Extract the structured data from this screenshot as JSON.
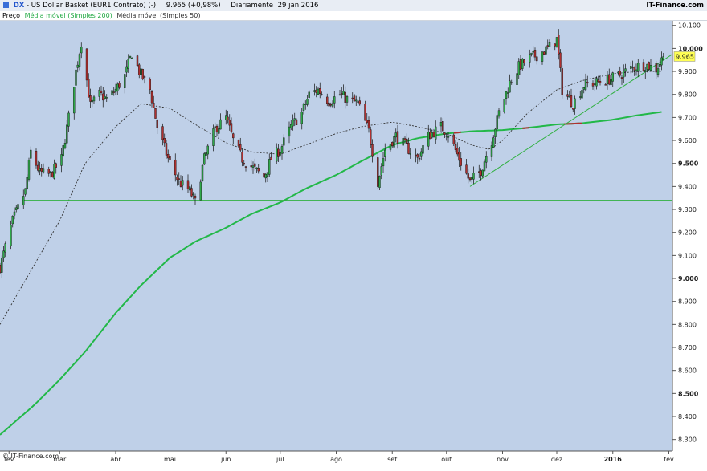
{
  "header": {
    "symbol": "DX",
    "title": "- US Dollar Basket (EUR1 Contrato) (-)",
    "quote": "9.965 (+0,98%)",
    "interval": "Diariamente",
    "date": "29 jan 2016",
    "brand": "IT-Finance.com"
  },
  "legend": {
    "items": [
      {
        "label": "Preço",
        "color": "#000000"
      },
      {
        "label": "Média móvel (Simples 200)",
        "color": "#22aa44"
      },
      {
        "label": "Média móvel (Simples 50)",
        "color": "#333333"
      }
    ]
  },
  "copyright": "© IT-Finance.com",
  "last_price_label": "9.965",
  "colors": {
    "background": "#bfd0e8",
    "up_candle": "#2fa84a",
    "down_candle": "#b03030",
    "ma200": "#22b848",
    "ma50": "#333333",
    "resistance": "#e05050",
    "support": "#30b040",
    "trendline": "#30b040",
    "price_tag": "#ffff55"
  },
  "chart_data": {
    "type": "candlestick",
    "y_axis": {
      "min": 8.25,
      "max": 10.12,
      "ticks": [
        "8.300",
        "8.400",
        "8.500",
        "8.600",
        "8.700",
        "8.800",
        "8.900",
        "9.000",
        "9.100",
        "9.200",
        "9.300",
        "9.400",
        "9.500",
        "9.600",
        "9.700",
        "9.800",
        "9.900",
        "10.000",
        "10.100"
      ],
      "bold_ticks": [
        "8.500",
        "9.000",
        "9.500",
        "10.000"
      ]
    },
    "x_axis": {
      "start": "2015-01-27",
      "end": "2016-02-03",
      "ticks": [
        {
          "label": "fev",
          "date": "2015-02-01"
        },
        {
          "label": "mar",
          "date": "2015-03-01"
        },
        {
          "label": "abr",
          "date": "2015-04-01"
        },
        {
          "label": "mai",
          "date": "2015-05-01"
        },
        {
          "label": "jun",
          "date": "2015-06-01"
        },
        {
          "label": "jul",
          "date": "2015-07-01"
        },
        {
          "label": "ago",
          "date": "2015-08-01"
        },
        {
          "label": "set",
          "date": "2015-09-01"
        },
        {
          "label": "out",
          "date": "2015-10-01"
        },
        {
          "label": "nov",
          "date": "2015-11-01"
        },
        {
          "label": "dez",
          "date": "2015-12-01"
        },
        {
          "label": "2016",
          "date": "2016-01-01",
          "bold": true
        },
        {
          "label": "fev",
          "date": "2016-02-01"
        }
      ]
    },
    "close_path": [
      [
        "2015-01-27",
        9.05
      ],
      [
        "2015-02-03",
        9.25
      ],
      [
        "2015-02-10",
        9.38
      ],
      [
        "2015-02-13",
        9.55
      ],
      [
        "2015-02-18",
        9.46
      ],
      [
        "2015-02-24",
        9.45
      ],
      [
        "2015-03-02",
        9.52
      ],
      [
        "2015-03-06",
        9.7
      ],
      [
        "2015-03-10",
        9.9
      ],
      [
        "2015-03-13",
        10.03
      ],
      [
        "2015-03-18",
        9.75
      ],
      [
        "2015-03-23",
        9.8
      ],
      [
        "2015-03-27",
        9.78
      ],
      [
        "2015-04-01",
        9.82
      ],
      [
        "2015-04-06",
        9.88
      ],
      [
        "2015-04-10",
        9.98
      ],
      [
        "2015-04-14",
        9.9
      ],
      [
        "2015-04-20",
        9.82
      ],
      [
        "2015-04-24",
        9.66
      ],
      [
        "2015-04-30",
        9.52
      ],
      [
        "2015-05-06",
        9.42
      ],
      [
        "2015-05-12",
        9.38
      ],
      [
        "2015-05-15",
        9.33
      ],
      [
        "2015-05-20",
        9.52
      ],
      [
        "2015-05-26",
        9.65
      ],
      [
        "2015-06-01",
        9.7
      ],
      [
        "2015-06-05",
        9.6
      ],
      [
        "2015-06-10",
        9.52
      ],
      [
        "2015-06-16",
        9.48
      ],
      [
        "2015-06-22",
        9.44
      ],
      [
        "2015-06-26",
        9.52
      ],
      [
        "2015-07-01",
        9.56
      ],
      [
        "2015-07-07",
        9.66
      ],
      [
        "2015-07-13",
        9.72
      ],
      [
        "2015-07-17",
        9.8
      ],
      [
        "2015-07-22",
        9.82
      ],
      [
        "2015-07-28",
        9.77
      ],
      [
        "2015-08-03",
        9.8
      ],
      [
        "2015-08-07",
        9.78
      ],
      [
        "2015-08-13",
        9.76
      ],
      [
        "2015-08-19",
        9.64
      ],
      [
        "2015-08-24",
        9.42
      ],
      [
        "2015-08-28",
        9.56
      ],
      [
        "2015-09-03",
        9.62
      ],
      [
        "2015-09-09",
        9.57
      ],
      [
        "2015-09-15",
        9.52
      ],
      [
        "2015-09-21",
        9.62
      ],
      [
        "2015-09-28",
        9.66
      ],
      [
        "2015-10-02",
        9.63
      ],
      [
        "2015-10-08",
        9.52
      ],
      [
        "2015-10-14",
        9.42
      ],
      [
        "2015-10-20",
        9.47
      ],
      [
        "2015-10-26",
        9.6
      ],
      [
        "2015-10-30",
        9.72
      ],
      [
        "2015-11-05",
        9.85
      ],
      [
        "2015-11-10",
        9.92
      ],
      [
        "2015-11-16",
        9.96
      ],
      [
        "2015-11-20",
        9.97
      ],
      [
        "2015-11-26",
        10.0
      ],
      [
        "2015-12-01",
        10.04
      ],
      [
        "2015-12-04",
        9.82
      ],
      [
        "2015-12-10",
        9.76
      ],
      [
        "2015-12-16",
        9.84
      ],
      [
        "2015-12-22",
        9.85
      ],
      [
        "2015-12-28",
        9.86
      ],
      [
        "2016-01-04",
        9.88
      ],
      [
        "2016-01-08",
        9.9
      ],
      [
        "2016-01-13",
        9.92
      ],
      [
        "2016-01-19",
        9.93
      ],
      [
        "2016-01-25",
        9.91
      ],
      [
        "2016-01-29",
        9.965
      ]
    ],
    "ma200": [
      [
        "2015-01-27",
        8.32
      ],
      [
        "2015-02-15",
        8.45
      ],
      [
        "2015-03-01",
        8.56
      ],
      [
        "2015-03-15",
        8.68
      ],
      [
        "2015-04-01",
        8.85
      ],
      [
        "2015-04-15",
        8.97
      ],
      [
        "2015-05-01",
        9.09
      ],
      [
        "2015-05-15",
        9.16
      ],
      [
        "2015-06-01",
        9.22
      ],
      [
        "2015-06-15",
        9.28
      ],
      [
        "2015-07-01",
        9.33
      ],
      [
        "2015-07-15",
        9.39
      ],
      [
        "2015-08-01",
        9.45
      ],
      [
        "2015-08-15",
        9.51
      ],
      [
        "2015-09-01",
        9.58
      ],
      [
        "2015-09-15",
        9.61
      ],
      [
        "2015-10-01",
        9.63
      ],
      [
        "2015-10-15",
        9.64
      ],
      [
        "2015-11-01",
        9.645
      ],
      [
        "2015-11-15",
        9.655
      ],
      [
        "2015-12-01",
        9.67
      ],
      [
        "2015-12-15",
        9.675
      ],
      [
        "2016-01-01",
        9.69
      ],
      [
        "2016-01-15",
        9.71
      ],
      [
        "2016-01-29",
        9.725
      ]
    ],
    "ma200_red_segments": [
      [
        "2015-10-05",
        "2015-10-09"
      ],
      [
        "2015-11-12",
        "2015-11-16"
      ],
      [
        "2015-12-05",
        "2015-12-15"
      ]
    ],
    "ma50": [
      [
        "2015-01-27",
        8.8
      ],
      [
        "2015-02-15",
        9.06
      ],
      [
        "2015-03-01",
        9.25
      ],
      [
        "2015-03-15",
        9.5
      ],
      [
        "2015-04-01",
        9.66
      ],
      [
        "2015-04-15",
        9.76
      ],
      [
        "2015-05-01",
        9.74
      ],
      [
        "2015-05-15",
        9.67
      ],
      [
        "2015-06-01",
        9.59
      ],
      [
        "2015-06-15",
        9.55
      ],
      [
        "2015-07-01",
        9.54
      ],
      [
        "2015-07-15",
        9.58
      ],
      [
        "2015-08-01",
        9.63
      ],
      [
        "2015-08-15",
        9.66
      ],
      [
        "2015-09-01",
        9.68
      ],
      [
        "2015-09-15",
        9.66
      ],
      [
        "2015-10-01",
        9.63
      ],
      [
        "2015-10-15",
        9.58
      ],
      [
        "2015-10-25",
        9.56
      ],
      [
        "2015-11-01",
        9.6
      ],
      [
        "2015-11-15",
        9.72
      ],
      [
        "2015-12-01",
        9.82
      ],
      [
        "2015-12-15",
        9.86
      ],
      [
        "2016-01-01",
        9.89
      ],
      [
        "2016-01-15",
        9.9
      ],
      [
        "2016-01-29",
        9.9
      ]
    ],
    "resistance": {
      "value": 10.08,
      "from": "2015-03-13",
      "to": "2016-02-03"
    },
    "support": {
      "value": 9.34,
      "from": "2015-02-08",
      "to": "2016-02-03"
    },
    "trendline": {
      "from": [
        "2015-10-14",
        9.4
      ],
      "to": [
        "2016-02-03",
        9.975
      ]
    },
    "last_price": 9.965
  }
}
